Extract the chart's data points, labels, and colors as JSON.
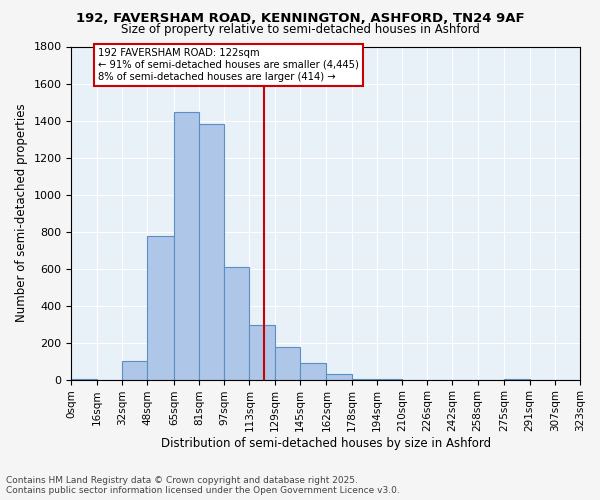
{
  "title1": "192, FAVERSHAM ROAD, KENNINGTON, ASHFORD, TN24 9AF",
  "title2": "Size of property relative to semi-detached houses in Ashford",
  "xlabel": "Distribution of semi-detached houses by size in Ashford",
  "ylabel": "Number of semi-detached properties",
  "property_size": 122,
  "pct_smaller": 91,
  "count_smaller": 4445,
  "pct_larger": 8,
  "count_larger": 414,
  "bin_edges": [
    0,
    16,
    32,
    48,
    65,
    81,
    97,
    113,
    129,
    145,
    162,
    178,
    194,
    210,
    226,
    242,
    258,
    275,
    291,
    307,
    323
  ],
  "bin_labels": [
    "0sqm",
    "16sqm",
    "32sqm",
    "48sqm",
    "65sqm",
    "81sqm",
    "97sqm",
    "113sqm",
    "129sqm",
    "145sqm",
    "162sqm",
    "178sqm",
    "194sqm",
    "210sqm",
    "226sqm",
    "242sqm",
    "258sqm",
    "275sqm",
    "291sqm",
    "307sqm",
    "323sqm"
  ],
  "bar_heights": [
    5,
    0,
    100,
    775,
    1445,
    1380,
    610,
    295,
    175,
    90,
    30,
    5,
    5,
    0,
    0,
    0,
    0,
    5,
    0,
    0
  ],
  "bar_color": "#aec6e8",
  "bar_edge_color": "#5a8fc2",
  "vline_x": 122,
  "vline_color": "#cc0000",
  "bg_color": "#e8f0f8",
  "grid_color": "#ffffff",
  "fig_bg_color": "#f5f5f5",
  "ylim": [
    0,
    1800
  ],
  "yticks": [
    0,
    200,
    400,
    600,
    800,
    1000,
    1200,
    1400,
    1600,
    1800
  ],
  "footer1": "Contains HM Land Registry data © Crown copyright and database right 2025.",
  "footer2": "Contains public sector information licensed under the Open Government Licence v3.0."
}
